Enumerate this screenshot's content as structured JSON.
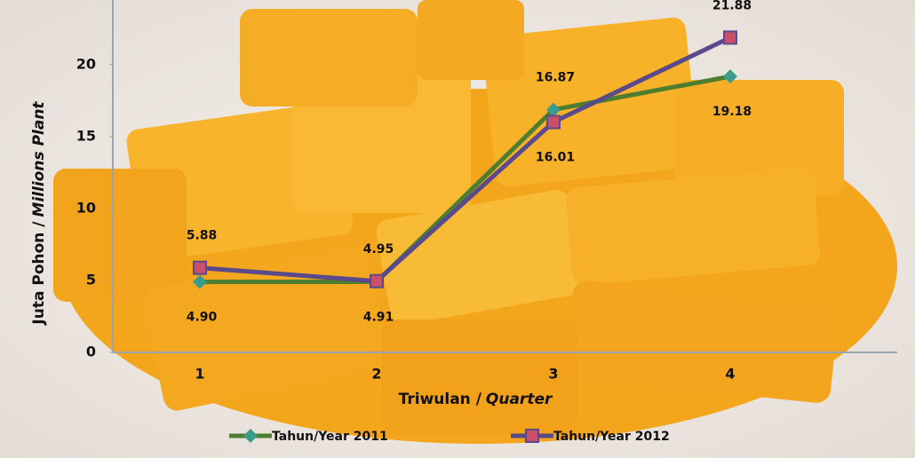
{
  "chart_data": {
    "type": "line",
    "categories": [
      "1",
      "2",
      "3",
      "4"
    ],
    "series": [
      {
        "name": "Tahun/Year 2011",
        "color": "#4e7d2f",
        "marker_color": "#3a9c8c",
        "values": [
          4.9,
          4.91,
          16.87,
          19.18
        ],
        "value_labels": [
          "4.90",
          "4.91",
          "16.87",
          "19.18"
        ]
      },
      {
        "name": "Tahun/Year 2012",
        "color": "#5a4a8c",
        "marker_color": "#c8506a",
        "values": [
          5.88,
          4.95,
          16.01,
          21.88
        ],
        "value_labels": [
          "5.88",
          "4.95",
          "16.01",
          "21.88"
        ]
      }
    ],
    "ylim": [
      0,
      24
    ],
    "yticks": [
      0,
      5,
      10,
      15,
      20
    ],
    "ylabel": [
      "Juta Pohon /",
      "Millions Plant"
    ],
    "xlabel": [
      "Triwulan /",
      "Quarter"
    ]
  }
}
